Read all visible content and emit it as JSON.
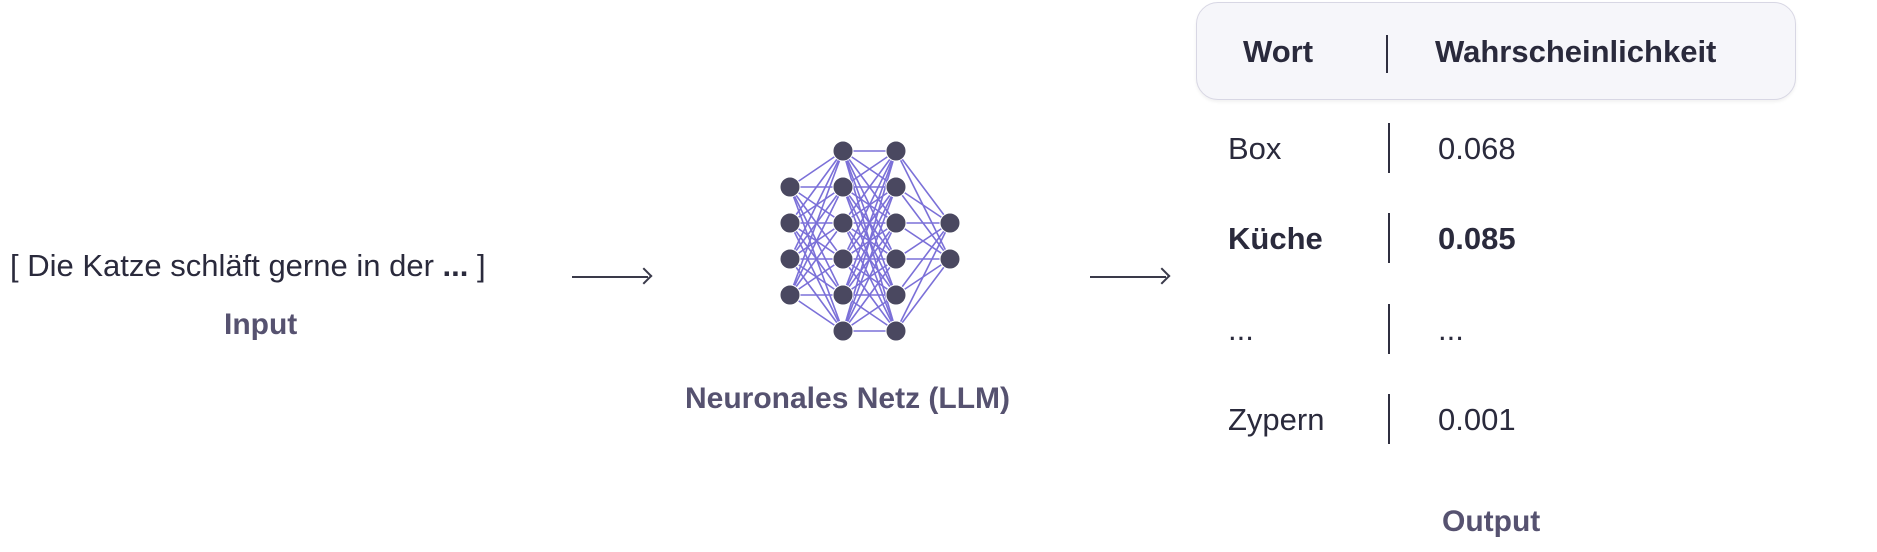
{
  "input": {
    "sentence_before": "[ Die Katze schläft gerne in der ",
    "sentence_ellipsis": "...",
    "sentence_after": " ]",
    "label": "Input"
  },
  "network": {
    "label": "Neuronales Netz (LLM)",
    "node_color": "#4a4860",
    "edge_color": "#7b70d8",
    "layers": [
      4,
      6,
      6,
      2
    ]
  },
  "output": {
    "label": "Output",
    "table": {
      "headers": {
        "word": "Wort",
        "probability": "Wahrscheinlichkeit"
      },
      "rows": [
        {
          "word": "Box",
          "probability": "0.068",
          "highlight": false
        },
        {
          "word": "Küche",
          "probability": "0.085",
          "highlight": true
        },
        {
          "word": "...",
          "probability": "...",
          "highlight": false
        },
        {
          "word": "Zypern",
          "probability": "0.001",
          "highlight": false
        }
      ]
    }
  }
}
